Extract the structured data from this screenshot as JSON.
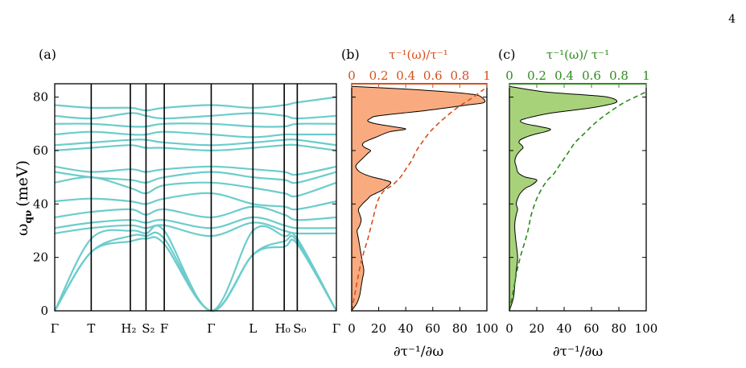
{
  "page_number": "4",
  "colors": {
    "phonon": "#6ccccc",
    "orange_fill": "#f9ab7f",
    "orange_line": "#d4501e",
    "green_fill": "#a7d27a",
    "green_line": "#2e8b1e",
    "axis": "#000000"
  },
  "chart_data": [
    {
      "type": "line",
      "panel_label": "(a)",
      "title": "",
      "ylabel": "ω_qν (meV)",
      "ylabel_main": "ω",
      "ylabel_sub": "qν",
      "ylabel_unit": "(meV)",
      "ylim": [
        0,
        85
      ],
      "yticks": [
        "0",
        "20",
        "40",
        "60",
        "80"
      ],
      "ytick_values": [
        0,
        20,
        40,
        60,
        80
      ],
      "kpath_ticks": [
        "Γ",
        "T",
        "H₂",
        "S₂",
        "F",
        "Γ",
        "L",
        "H₀",
        "S₀",
        "Γ"
      ],
      "kpath_positions": [
        0,
        0.1296,
        0.2685,
        0.3241,
        0.3889,
        0.5556,
        0.7037,
        0.8148,
        0.8611,
        1.0
      ],
      "series": [
        {
          "x": [
            0,
            0.1296,
            0.2685,
            0.3241,
            0.3889,
            0.5556,
            0.7037,
            0.8148,
            0.8611,
            1.0
          ],
          "values": [
            0,
            22,
            26,
            27,
            25,
            0,
            21,
            24,
            25,
            0
          ]
        },
        {
          "x": [
            0,
            0.1296,
            0.2685,
            0.3241,
            0.3889,
            0.5556,
            0.7037,
            0.8148,
            0.8611,
            1.0
          ],
          "values": [
            0,
            22,
            28,
            28,
            27,
            0,
            21,
            26,
            26,
            0
          ]
        },
        {
          "x": [
            0,
            0.1296,
            0.2685,
            0.3241,
            0.3889,
            0.5556,
            0.7037,
            0.8148,
            0.8611,
            1.0
          ],
          "values": [
            0,
            27,
            30,
            29,
            30,
            0,
            30,
            28,
            27,
            0
          ]
        },
        {
          "x": [
            0,
            0.1296,
            0.2685,
            0.3241,
            0.3889,
            0.5556,
            0.7037,
            0.8148,
            0.8611,
            1.0
          ],
          "values": [
            29,
            31,
            32,
            31,
            32,
            28,
            33,
            30,
            29,
            29
          ]
        },
        {
          "x": [
            0,
            0.1296,
            0.2685,
            0.3241,
            0.3889,
            0.5556,
            0.7037,
            0.8148,
            0.8611,
            1.0
          ],
          "values": [
            31,
            33,
            34,
            33,
            34,
            31,
            35,
            32,
            31,
            31
          ]
        },
        {
          "x": [
            0,
            0.1296,
            0.2685,
            0.3241,
            0.3889,
            0.5556,
            0.7037,
            0.8148,
            0.8611,
            1.0
          ],
          "values": [
            35,
            37,
            38,
            36,
            38,
            35,
            39,
            36,
            34,
            35
          ]
        },
        {
          "x": [
            0,
            0.1296,
            0.2685,
            0.3241,
            0.3889,
            0.5556,
            0.7037,
            0.8148,
            0.8611,
            1.0
          ],
          "values": [
            41,
            42,
            41,
            40,
            42,
            44,
            40,
            39,
            38,
            41
          ]
        },
        {
          "x": [
            0,
            0.1296,
            0.2685,
            0.3241,
            0.3889,
            0.5556,
            0.7037,
            0.8148,
            0.8611,
            1.0
          ],
          "values": [
            48,
            50,
            46,
            44,
            47,
            48,
            46,
            44,
            43,
            48
          ]
        },
        {
          "x": [
            0,
            0.1296,
            0.2685,
            0.3241,
            0.3889,
            0.5556,
            0.7037,
            0.8148,
            0.8611,
            1.0
          ],
          "values": [
            52,
            50,
            49,
            48,
            50,
            52,
            50,
            49,
            48,
            52
          ]
        },
        {
          "x": [
            0,
            0.1296,
            0.2685,
            0.3241,
            0.3889,
            0.5556,
            0.7037,
            0.8148,
            0.8611,
            1.0
          ],
          "values": [
            54,
            52,
            53,
            52,
            53,
            54,
            53,
            52,
            51,
            54
          ]
        },
        {
          "x": [
            0,
            0.1296,
            0.2685,
            0.3241,
            0.3889,
            0.5556,
            0.7037,
            0.8148,
            0.8611,
            1.0
          ],
          "values": [
            60,
            61,
            62,
            61,
            61,
            60,
            61,
            62,
            62,
            60
          ]
        },
        {
          "x": [
            0,
            0.1296,
            0.2685,
            0.3241,
            0.3889,
            0.5556,
            0.7037,
            0.8148,
            0.8611,
            1.0
          ],
          "values": [
            62,
            63,
            64,
            64,
            63,
            62,
            63,
            64,
            64,
            62
          ]
        },
        {
          "x": [
            0,
            0.1296,
            0.2685,
            0.3241,
            0.3889,
            0.5556,
            0.7037,
            0.8148,
            0.8611,
            1.0
          ],
          "values": [
            66,
            67,
            66,
            66,
            67,
            66,
            65,
            66,
            66,
            66
          ]
        },
        {
          "x": [
            0,
            0.1296,
            0.2685,
            0.3241,
            0.3889,
            0.5556,
            0.7037,
            0.8148,
            0.8611,
            1.0
          ],
          "values": [
            70,
            70,
            69,
            69,
            70,
            70,
            69,
            69,
            70,
            70
          ]
        },
        {
          "x": [
            0,
            0.1296,
            0.2685,
            0.3241,
            0.3889,
            0.5556,
            0.7037,
            0.8148,
            0.8611,
            1.0
          ],
          "values": [
            73,
            72,
            74,
            73,
            72,
            73,
            74,
            73,
            72,
            73
          ]
        },
        {
          "x": [
            0,
            0.1296,
            0.2685,
            0.3241,
            0.3889,
            0.5556,
            0.7037,
            0.8148,
            0.8611,
            1.0
          ],
          "values": [
            77,
            76,
            76,
            75,
            76,
            77,
            76,
            77,
            78,
            80
          ]
        }
      ]
    },
    {
      "type": "area",
      "panel_label": "(b)",
      "title": "τ⁻¹(ω)/τ⁻¹",
      "xlabel": "∂τ⁻¹/∂ω",
      "xlim": [
        0,
        100
      ],
      "xticks": [
        "0",
        "20",
        "40",
        "60",
        "80",
        "100"
      ],
      "top_xlim": [
        0,
        1
      ],
      "top_xticks": [
        "0",
        "0.2",
        "0.4",
        "0.6",
        "0.8",
        "1"
      ],
      "ylim": [
        0,
        85
      ],
      "series": [
        {
          "name": "",
          "x": [
            0,
            4,
            6,
            7,
            8,
            9,
            8,
            7,
            6,
            5,
            4,
            5,
            6,
            7,
            6,
            5,
            8,
            10,
            12,
            14,
            18,
            22,
            25,
            29,
            24,
            16,
            10,
            6,
            4,
            3,
            4,
            8,
            12,
            14,
            10,
            8,
            9,
            13,
            18,
            28,
            40,
            30,
            18,
            12,
            14,
            20,
            55,
            85,
            98,
            96,
            90,
            70,
            40,
            0
          ],
          "y": [
            0,
            3,
            6,
            9,
            12,
            15,
            18,
            21,
            24,
            27,
            30,
            31,
            32,
            34,
            36,
            38,
            40,
            41,
            42,
            43,
            44,
            45,
            46,
            48,
            49,
            50,
            51,
            52,
            53,
            54,
            55,
            57,
            59,
            60,
            61,
            62,
            63,
            64,
            65,
            67,
            68,
            69,
            70,
            71,
            72,
            73,
            75,
            77,
            78,
            80,
            81,
            82,
            83,
            84
          ]
        },
        {
          "name": "",
          "x": [
            0,
            0.03,
            0.06,
            0.09,
            0.12,
            0.14,
            0.16,
            0.18,
            0.2,
            0.24,
            0.3,
            0.36,
            0.4,
            0.44,
            0.48,
            0.52,
            0.58,
            0.66,
            0.78,
            0.9,
            0.98
          ],
          "y": [
            0,
            8,
            16,
            22,
            27,
            31,
            35,
            39,
            42,
            45,
            47,
            50,
            53,
            56,
            60,
            63,
            67,
            71,
            76,
            80,
            83
          ]
        }
      ]
    },
    {
      "type": "area",
      "panel_label": "(c)",
      "title": "τ⁻¹(ω)/ τ⁻¹",
      "xlabel": "∂τ⁻¹/∂ω",
      "xlim": [
        0,
        100
      ],
      "xticks": [
        "0",
        "20",
        "40",
        "60",
        "80",
        "100"
      ],
      "top_xlim": [
        0,
        1
      ],
      "top_xticks": [
        "0",
        "0.2",
        "0.4",
        "0.6",
        "0.8",
        "1"
      ],
      "ylim": [
        0,
        85
      ],
      "series": [
        {
          "name": "",
          "x": [
            0,
            3,
            4,
            5,
            6,
            5,
            4,
            4,
            5,
            6,
            5,
            6,
            8,
            12,
            16,
            20,
            12,
            8,
            6,
            5,
            4,
            5,
            8,
            10,
            9,
            7,
            8,
            12,
            18,
            26,
            30,
            22,
            12,
            8,
            12,
            30,
            60,
            78,
            72,
            50,
            25,
            0
          ],
          "y": [
            0,
            5,
            10,
            15,
            20,
            25,
            30,
            33,
            36,
            38,
            40,
            42,
            44,
            46,
            47,
            49,
            50,
            51,
            52,
            54,
            56,
            58,
            60,
            61,
            62,
            63,
            64,
            65,
            66,
            67,
            68,
            69,
            70,
            71,
            72,
            74,
            76,
            78,
            80,
            81,
            82,
            84
          ]
        },
        {
          "name": "",
          "x": [
            0,
            0.03,
            0.06,
            0.09,
            0.12,
            0.14,
            0.16,
            0.2,
            0.24,
            0.28,
            0.32,
            0.36,
            0.4,
            0.44,
            0.48,
            0.54,
            0.62,
            0.72,
            0.84,
            0.96,
            1.0
          ],
          "y": [
            0,
            8,
            16,
            22,
            27,
            31,
            36,
            42,
            46,
            49,
            51,
            54,
            57,
            60,
            63,
            66,
            70,
            74,
            78,
            81,
            82
          ]
        }
      ]
    }
  ]
}
